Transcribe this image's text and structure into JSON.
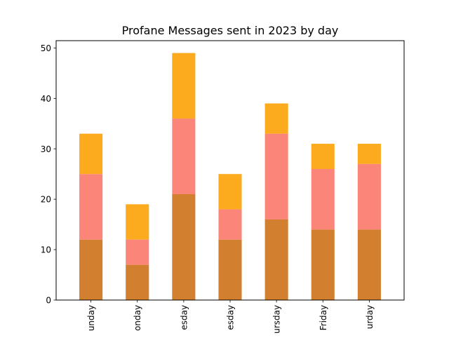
{
  "chart_data": {
    "type": "bar",
    "stacked": true,
    "title": "Profane Messages sent in 2023 by day",
    "xlabel": "",
    "ylabel": "",
    "categories": [
      "Sunday",
      "Monday",
      "Tuesday",
      "Wednesday",
      "Thursday",
      "Friday",
      "Saturday"
    ],
    "visible_tick_labels": [
      "unday",
      "onday",
      "esday",
      "esday",
      "ursday",
      "Friday",
      "urday"
    ],
    "ylim": [
      0,
      51.45
    ],
    "yticks": [
      0,
      10,
      20,
      30,
      40,
      50
    ],
    "series": [
      {
        "color": "#d27f2f",
        "values": [
          12,
          7,
          21,
          12,
          16,
          14,
          14
        ]
      },
      {
        "color": "#fa8578",
        "values": [
          13,
          5,
          15,
          6,
          17,
          12,
          13
        ]
      },
      {
        "color": "#fdab1e",
        "values": [
          8,
          7,
          13,
          7,
          6,
          5,
          4
        ]
      }
    ],
    "grid": false,
    "legend": "none"
  }
}
